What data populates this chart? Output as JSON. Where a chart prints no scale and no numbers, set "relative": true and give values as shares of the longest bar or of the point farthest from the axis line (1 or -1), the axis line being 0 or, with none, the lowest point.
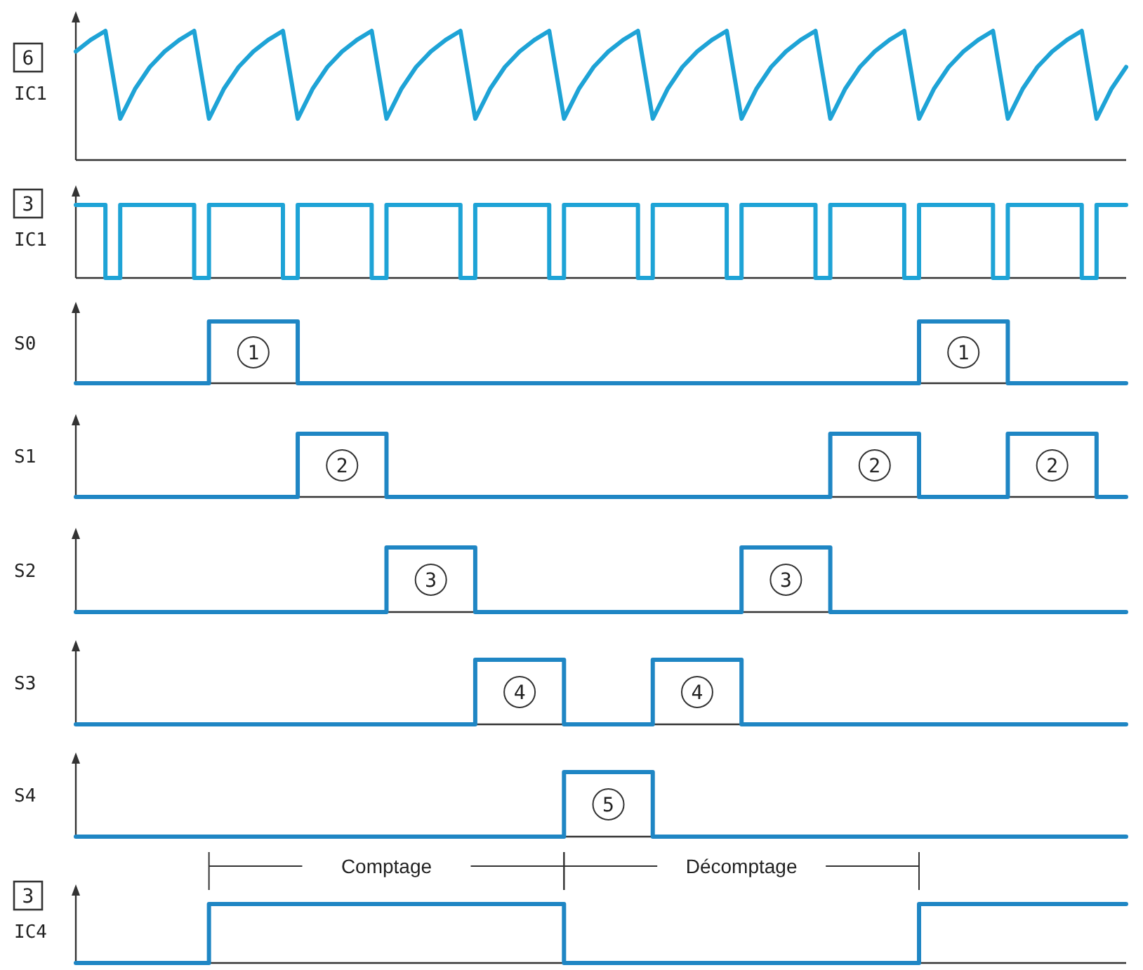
{
  "chart_data": [
    {
      "type": "line",
      "ylabel": "6 IC1",
      "relative": true,
      "color": "#1ea3d6",
      "categories": [
        null,
        null,
        null,
        null,
        null,
        null,
        null,
        null,
        null,
        null,
        null,
        null,
        null,
        null,
        null,
        null,
        null,
        null,
        null,
        null,
        null,
        null,
        null,
        null,
        null,
        null,
        null,
        null,
        null,
        null,
        null,
        null,
        null,
        null,
        null,
        null,
        null,
        null,
        null,
        null,
        null,
        null,
        null,
        null,
        null,
        null,
        null,
        null,
        null,
        null,
        null,
        null,
        null,
        null,
        null,
        null,
        null,
        null,
        null,
        null,
        null,
        null,
        null,
        null,
        null,
        null,
        null,
        null,
        null,
        null,
        null,
        null
      ],
      "values": [
        0.84,
        0.93,
        1,
        0.32,
        0.55,
        0.72,
        0.84,
        0.93,
        1,
        0.32,
        0.55,
        0.72,
        0.84,
        0.93,
        1,
        0.32,
        0.55,
        0.72,
        0.84,
        0.93,
        1,
        0.32,
        0.55,
        0.72,
        0.84,
        0.93,
        1,
        0.32,
        0.55,
        0.72,
        0.84,
        0.93,
        1,
        0.32,
        0.55,
        0.72,
        0.84,
        0.93,
        1,
        0.32,
        0.55,
        0.72,
        0.84,
        0.93,
        1,
        0.32,
        0.55,
        0.72,
        0.84,
        0.93,
        1,
        0.32,
        0.55,
        0.72,
        0.84,
        0.93,
        1,
        0.32,
        0.55,
        0.72,
        0.84,
        0.93,
        1,
        0.32,
        0.55,
        0.72,
        0.84,
        0.93,
        1,
        0.32,
        0.55,
        0.72
      ]
    },
    {
      "type": "step",
      "ylabel": "3 IC1",
      "relative": true,
      "color": "#1ea3d6",
      "categories": [
        null,
        null,
        null,
        null,
        null,
        null,
        null,
        null,
        null,
        null,
        null,
        null,
        null,
        null,
        null,
        null,
        null,
        null,
        null,
        null,
        null,
        null,
        null,
        null,
        null,
        null,
        null,
        null,
        null,
        null,
        null,
        null,
        null,
        null,
        null,
        null,
        null,
        null,
        null,
        null,
        null,
        null,
        null,
        null,
        null,
        null,
        null,
        null,
        null,
        null,
        null,
        null,
        null,
        null,
        null,
        null,
        null,
        null,
        null,
        null,
        null,
        null,
        null,
        null,
        null,
        null,
        null,
        null,
        null,
        null,
        null,
        null
      ],
      "values": [
        1,
        1,
        0,
        1,
        1,
        1,
        1,
        1,
        0,
        1,
        1,
        1,
        1,
        1,
        0,
        1,
        1,
        1,
        1,
        1,
        0,
        1,
        1,
        1,
        1,
        1,
        0,
        1,
        1,
        1,
        1,
        1,
        0,
        1,
        1,
        1,
        1,
        1,
        0,
        1,
        1,
        1,
        1,
        1,
        0,
        1,
        1,
        1,
        1,
        1,
        0,
        1,
        1,
        1,
        1,
        1,
        0,
        1,
        1,
        1,
        1,
        1,
        0,
        1,
        1,
        1,
        1,
        1,
        0,
        1,
        1,
        1
      ]
    },
    {
      "type": "step",
      "ylabel": "S0",
      "relative": true,
      "color": "#1f86c4",
      "categories": [
        null,
        null,
        null,
        null,
        null,
        null,
        null,
        null,
        null,
        null,
        null,
        null,
        null,
        null,
        null,
        null,
        null,
        null,
        null,
        null,
        null,
        null,
        null,
        null,
        null,
        null,
        null,
        null,
        null,
        null,
        null,
        null,
        null,
        null,
        null,
        null,
        null,
        null,
        null,
        null,
        null,
        null,
        null,
        null,
        null,
        null,
        null,
        null,
        null,
        null,
        null,
        null,
        null,
        null,
        null,
        null,
        null,
        null,
        null,
        null,
        null,
        null,
        null,
        null,
        null,
        null,
        null,
        null,
        null,
        null,
        null,
        null
      ],
      "values": [
        0,
        0,
        0,
        0,
        0,
        0,
        0,
        0,
        0,
        1,
        1,
        1,
        1,
        1,
        1,
        0,
        0,
        0,
        0,
        0,
        0,
        0,
        0,
        0,
        0,
        0,
        0,
        0,
        0,
        0,
        0,
        0,
        0,
        0,
        0,
        0,
        0,
        0,
        0,
        0,
        0,
        0,
        0,
        0,
        0,
        0,
        0,
        0,
        0,
        0,
        0,
        0,
        0,
        0,
        0,
        0,
        0,
        1,
        1,
        1,
        1,
        1,
        1,
        0,
        0,
        0,
        0,
        0,
        0,
        0,
        0,
        0
      ],
      "annotations": [
        "1",
        "1"
      ]
    },
    {
      "type": "step",
      "ylabel": "S1",
      "relative": true,
      "color": "#1f86c4",
      "categories": [
        null,
        null,
        null,
        null,
        null,
        null,
        null,
        null,
        null,
        null,
        null,
        null,
        null,
        null,
        null,
        null,
        null,
        null,
        null,
        null,
        null,
        null,
        null,
        null,
        null,
        null,
        null,
        null,
        null,
        null,
        null,
        null,
        null,
        null,
        null,
        null,
        null,
        null,
        null,
        null,
        null,
        null,
        null,
        null,
        null,
        null,
        null,
        null,
        null,
        null,
        null,
        null,
        null,
        null,
        null,
        null,
        null,
        null,
        null,
        null,
        null,
        null,
        null,
        null,
        null,
        null,
        null,
        null,
        null,
        null,
        null,
        null
      ],
      "values": [
        0,
        0,
        0,
        0,
        0,
        0,
        0,
        0,
        0,
        0,
        0,
        0,
        0,
        0,
        0,
        1,
        1,
        1,
        1,
        1,
        1,
        0,
        0,
        0,
        0,
        0,
        0,
        0,
        0,
        0,
        0,
        0,
        0,
        0,
        0,
        0,
        0,
        0,
        0,
        0,
        0,
        0,
        0,
        0,
        0,
        0,
        0,
        0,
        0,
        0,
        0,
        1,
        1,
        1,
        1,
        1,
        1,
        0,
        0,
        0,
        0,
        0,
        0,
        1,
        1,
        1,
        1,
        1,
        1,
        0,
        0,
        0
      ],
      "annotations": [
        "2",
        "2",
        "2"
      ]
    },
    {
      "type": "step",
      "ylabel": "S2",
      "relative": true,
      "color": "#1f86c4",
      "categories": [
        null,
        null,
        null,
        null,
        null,
        null,
        null,
        null,
        null,
        null,
        null,
        null,
        null,
        null,
        null,
        null,
        null,
        null,
        null,
        null,
        null,
        null,
        null,
        null,
        null,
        null,
        null,
        null,
        null,
        null,
        null,
        null,
        null,
        null,
        null,
        null,
        null,
        null,
        null,
        null,
        null,
        null,
        null,
        null,
        null,
        null,
        null,
        null,
        null,
        null,
        null,
        null,
        null,
        null,
        null,
        null,
        null,
        null,
        null,
        null,
        null,
        null,
        null,
        null,
        null,
        null,
        null,
        null,
        null,
        null,
        null,
        null
      ],
      "values": [
        0,
        0,
        0,
        0,
        0,
        0,
        0,
        0,
        0,
        0,
        0,
        0,
        0,
        0,
        0,
        0,
        0,
        0,
        0,
        0,
        0,
        1,
        1,
        1,
        1,
        1,
        1,
        0,
        0,
        0,
        0,
        0,
        0,
        0,
        0,
        0,
        0,
        0,
        0,
        0,
        0,
        0,
        0,
        0,
        0,
        1,
        1,
        1,
        1,
        1,
        1,
        0,
        0,
        0,
        0,
        0,
        0,
        0,
        0,
        0,
        0,
        0,
        0,
        0,
        0,
        0,
        0,
        0,
        0,
        0,
        0,
        0
      ],
      "annotations": [
        "3",
        "3"
      ]
    },
    {
      "type": "step",
      "ylabel": "S3",
      "relative": true,
      "color": "#1f86c4",
      "categories": [
        null,
        null,
        null,
        null,
        null,
        null,
        null,
        null,
        null,
        null,
        null,
        null,
        null,
        null,
        null,
        null,
        null,
        null,
        null,
        null,
        null,
        null,
        null,
        null,
        null,
        null,
        null,
        null,
        null,
        null,
        null,
        null,
        null,
        null,
        null,
        null,
        null,
        null,
        null,
        null,
        null,
        null,
        null,
        null,
        null,
        null,
        null,
        null,
        null,
        null,
        null,
        null,
        null,
        null,
        null,
        null,
        null,
        null,
        null,
        null,
        null,
        null,
        null,
        null,
        null,
        null,
        null,
        null,
        null,
        null,
        null,
        null
      ],
      "values": [
        0,
        0,
        0,
        0,
        0,
        0,
        0,
        0,
        0,
        0,
        0,
        0,
        0,
        0,
        0,
        0,
        0,
        0,
        0,
        0,
        0,
        0,
        0,
        0,
        0,
        0,
        0,
        1,
        1,
        1,
        1,
        1,
        1,
        0,
        0,
        0,
        0,
        0,
        0,
        1,
        1,
        1,
        1,
        1,
        1,
        0,
        0,
        0,
        0,
        0,
        0,
        0,
        0,
        0,
        0,
        0,
        0,
        0,
        0,
        0,
        0,
        0,
        0,
        0,
        0,
        0,
        0,
        0,
        0,
        0,
        0,
        0
      ],
      "annotations": [
        "4",
        "4"
      ]
    },
    {
      "type": "step",
      "ylabel": "S4",
      "relative": true,
      "color": "#1f86c4",
      "categories": [
        null,
        null,
        null,
        null,
        null,
        null,
        null,
        null,
        null,
        null,
        null,
        null,
        null,
        null,
        null,
        null,
        null,
        null,
        null,
        null,
        null,
        null,
        null,
        null,
        null,
        null,
        null,
        null,
        null,
        null,
        null,
        null,
        null,
        null,
        null,
        null,
        null,
        null,
        null,
        null,
        null,
        null,
        null,
        null,
        null,
        null,
        null,
        null,
        null,
        null,
        null,
        null,
        null,
        null,
        null,
        null,
        null,
        null,
        null,
        null,
        null,
        null,
        null,
        null,
        null,
        null,
        null,
        null,
        null,
        null,
        null,
        null
      ],
      "values": [
        0,
        0,
        0,
        0,
        0,
        0,
        0,
        0,
        0,
        0,
        0,
        0,
        0,
        0,
        0,
        0,
        0,
        0,
        0,
        0,
        0,
        0,
        0,
        0,
        0,
        0,
        0,
        0,
        0,
        0,
        0,
        0,
        0,
        1,
        1,
        1,
        1,
        1,
        1,
        0,
        0,
        0,
        0,
        0,
        0,
        0,
        0,
        0,
        0,
        0,
        0,
        0,
        0,
        0,
        0,
        0,
        0,
        0,
        0,
        0,
        0,
        0,
        0,
        0,
        0,
        0,
        0,
        0,
        0,
        0,
        0,
        0
      ],
      "annotations": [
        "5"
      ]
    },
    {
      "type": "step",
      "ylabel": "3 IC4",
      "relative": true,
      "color": "#1f86c4",
      "annotations": [
        "Comptage",
        "Décomptage"
      ],
      "categories": [
        null,
        null,
        null,
        null,
        null,
        null,
        null,
        null,
        null,
        null,
        null,
        null,
        null,
        null,
        null,
        null,
        null,
        null,
        null,
        null,
        null,
        null,
        null,
        null,
        null,
        null,
        null,
        null,
        null,
        null,
        null,
        null,
        null,
        null,
        null,
        null,
        null,
        null,
        null,
        null,
        null,
        null,
        null,
        null,
        null,
        null,
        null,
        null,
        null,
        null,
        null,
        null,
        null,
        null,
        null,
        null,
        null,
        null,
        null,
        null,
        null,
        null,
        null,
        null,
        null,
        null,
        null,
        null,
        null,
        null,
        null,
        null
      ],
      "values": [
        0,
        0,
        0,
        0,
        0,
        0,
        0,
        0,
        0,
        1,
        1,
        1,
        1,
        1,
        1,
        1,
        1,
        1,
        1,
        1,
        1,
        1,
        1,
        1,
        1,
        1,
        1,
        1,
        1,
        1,
        1,
        1,
        1,
        0,
        0,
        0,
        0,
        0,
        0,
        0,
        0,
        0,
        0,
        0,
        0,
        0,
        0,
        0,
        0,
        0,
        0,
        0,
        0,
        0,
        0,
        0,
        0,
        1,
        1,
        1,
        1,
        1,
        1,
        1,
        1,
        1,
        1,
        1,
        1,
        1,
        1,
        1
      ]
    }
  ]
}
